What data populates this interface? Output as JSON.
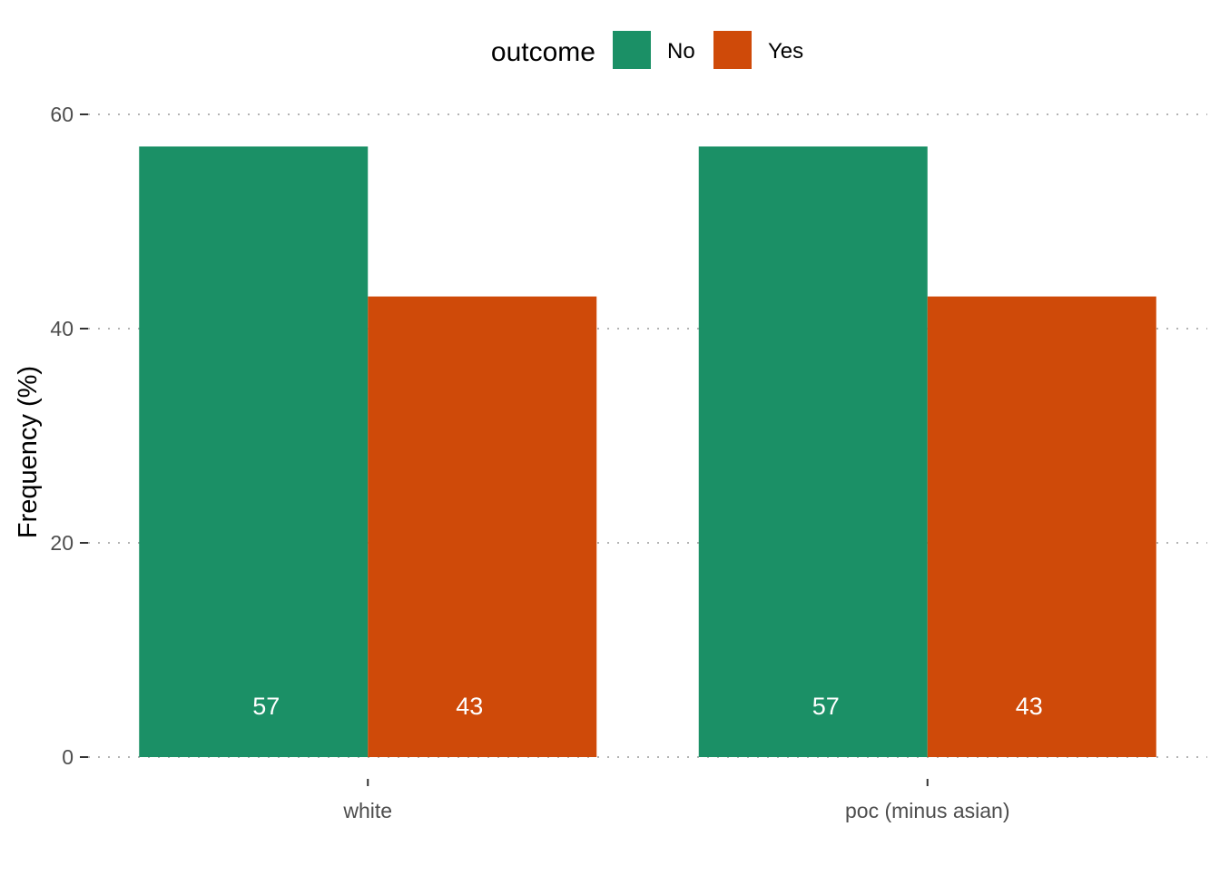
{
  "chart_data": {
    "type": "bar",
    "title": "",
    "xlabel": "",
    "ylabel": "Frequency (%)",
    "ylim": [
      0,
      60
    ],
    "yticks": [
      0,
      20,
      40,
      60
    ],
    "grid": "horizontal dotted",
    "legend": {
      "title": "outcome",
      "placement": "top"
    },
    "categories": [
      "white",
      "poc (minus asian)"
    ],
    "series": [
      {
        "name": "No",
        "color": "#1b9066",
        "values": [
          57,
          57
        ],
        "labels": [
          "57",
          "57"
        ]
      },
      {
        "name": "Yes",
        "color": "#cf4a09",
        "values": [
          43,
          43
        ],
        "labels": [
          "43",
          "43"
        ]
      }
    ]
  }
}
